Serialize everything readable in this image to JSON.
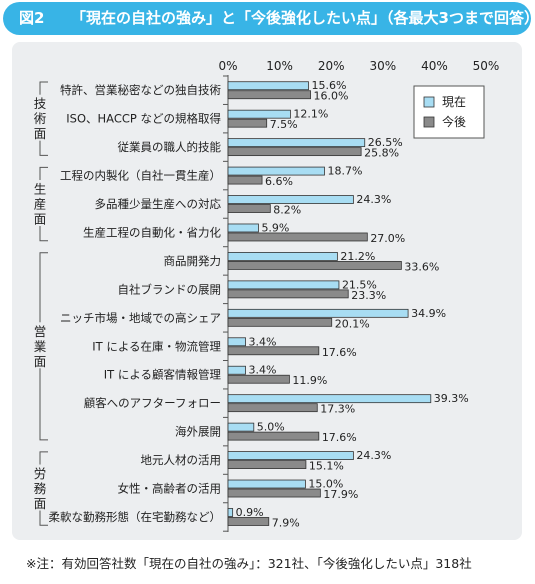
{
  "header": {
    "figure_label": "図2",
    "title": "「現在の自社の強み」と「今後強化したい点」（各最大3つまで回答）"
  },
  "footnote": "※注：有効回答社数「現在の自社の強み」：321社、「今後強化したい点」318社",
  "colors": {
    "banner": "#38b4e6",
    "panel": "#eceef0",
    "current_bar": "#a8ddf3",
    "future_bar": "#8a8a8a"
  },
  "chart_data": {
    "type": "bar",
    "orientation": "horizontal",
    "xlim": [
      0,
      50
    ],
    "x_ticks": [
      "0%",
      "10%",
      "20%",
      "30%",
      "40%",
      "50%"
    ],
    "groups": [
      {
        "label": "技術面",
        "categories": [
          0,
          1,
          2
        ]
      },
      {
        "label": "生産面",
        "categories": [
          3,
          4,
          5
        ]
      },
      {
        "label": "営業面",
        "categories": [
          6,
          7,
          8,
          9,
          10,
          11,
          12
        ]
      },
      {
        "label": "労務面",
        "categories": [
          13,
          14,
          15
        ]
      }
    ],
    "categories": [
      "特許、営業秘密などの独自技術",
      "ISO、HACCP などの規格取得",
      "従業員の職人的技能",
      "工程の内製化（自社一貫生産）",
      "多品種少量生産への対応",
      "生産工程の自動化・省力化",
      "商品開発力",
      "自社ブランドの展開",
      "ニッチ市場・地域での高シェア",
      "IT による在庫・物流管理",
      "IT による顧客情報管理",
      "顧客へのアフターフォロー",
      "海外展開",
      "地元人材の活用",
      "女性・高齢者の活用",
      "柔軟な勤務形態（在宅勤務など）"
    ],
    "series": [
      {
        "name": "現在",
        "values": [
          15.6,
          12.1,
          26.5,
          18.7,
          24.3,
          5.9,
          21.2,
          21.5,
          34.9,
          3.4,
          3.4,
          39.3,
          5.0,
          24.3,
          15.0,
          0.9
        ],
        "labels": [
          "15.6%",
          "12.1%",
          "26.5%",
          "18.7%",
          "24.3%",
          "5.9%",
          "21.2%",
          "21.5%",
          "34.9%",
          "3.4%",
          "3.4%",
          "39.3%",
          "5.0%",
          "24.3%",
          "15.0%",
          "0.9%"
        ]
      },
      {
        "name": "今後",
        "values": [
          16.0,
          7.5,
          25.8,
          6.6,
          8.2,
          27.0,
          33.6,
          23.3,
          20.1,
          17.6,
          11.9,
          17.3,
          17.6,
          15.1,
          17.9,
          7.9
        ],
        "labels": [
          "16.0%",
          "7.5%",
          "25.8%",
          "6.6%",
          "8.2%",
          "27.0%",
          "33.6%",
          "23.3%",
          "20.1%",
          "17.6%",
          "11.9%",
          "17.3%",
          "17.6%",
          "15.1%",
          "17.9%",
          "7.9%"
        ]
      }
    ],
    "legend_position": "top-right",
    "grid": false
  }
}
